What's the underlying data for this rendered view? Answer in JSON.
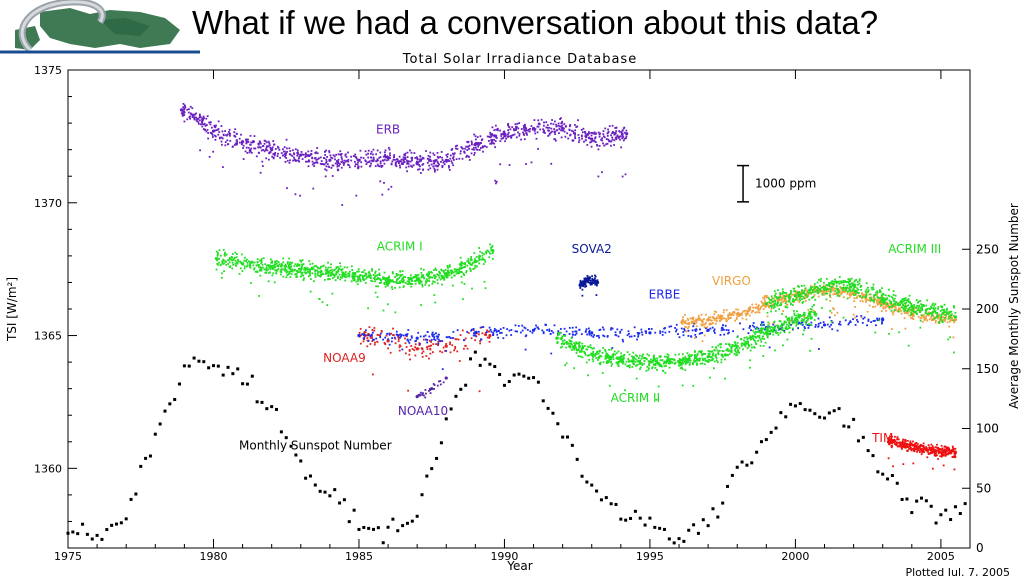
{
  "slide": {
    "title": "What if we had a conversation about this data?"
  },
  "chart_data": {
    "type": "scatter",
    "title": "Total Solar Irradiance Database",
    "xlabel": "Year",
    "ylabel": "TSI [W/m²]",
    "y2label": "Average Monthly Sunspot Number",
    "xlim": [
      1975,
      2006
    ],
    "ylim": [
      1357,
      1375
    ],
    "y2lim": [
      0,
      400
    ],
    "xticks": [
      1975,
      1980,
      1985,
      1990,
      1995,
      2000,
      2005
    ],
    "yticks": [
      1360,
      1365,
      1370,
      1375
    ],
    "y2ticks": [
      0,
      50,
      100,
      150,
      200,
      250
    ],
    "scale_bar_label": "1000 ppm",
    "footer": "Plotted Jul. 7, 2005",
    "colors": {
      "ERB": "#6a1fbf",
      "ACRIM I": "#22dd22",
      "ACRIM II": "#22dd22",
      "ACRIM III": "#22dd22",
      "NOAA9": "#dd2222",
      "NOAA10": "#5522aa",
      "SOVA2": "#0a1a99",
      "ERBE": "#1a2aee",
      "VIRGO": "#f0a040",
      "TIM": "#ee1111",
      "Monthly Sunspot Number": "#000000"
    },
    "series": [
      {
        "name": "ERB",
        "label_pos": [
          1986.0,
          1372.6
        ],
        "x": [
          1978.9,
          1979.3,
          1980,
          1981,
          1982,
          1983,
          1984,
          1985,
          1986,
          1987,
          1988,
          1989,
          1990,
          1991,
          1992,
          1993,
          1994.2
        ],
        "y": [
          1373.5,
          1373.3,
          1372.7,
          1372.3,
          1372.0,
          1371.8,
          1371.6,
          1371.6,
          1371.7,
          1371.5,
          1371.6,
          1372.2,
          1372.6,
          1372.8,
          1372.8,
          1372.4,
          1372.6
        ]
      },
      {
        "name": "ACRIM I",
        "label_pos": [
          1986.4,
          1368.2
        ],
        "x": [
          1980.1,
          1981,
          1982,
          1983,
          1983.9,
          1984.5,
          1985,
          1986,
          1987,
          1988,
          1989,
          1989.6
        ],
        "y": [
          1367.9,
          1367.7,
          1367.6,
          1367.5,
          1367.4,
          1367.3,
          1367.2,
          1367.1,
          1367.1,
          1367.3,
          1367.8,
          1368.2
        ]
      },
      {
        "name": "NOAA9",
        "label_pos": [
          1984.5,
          1364.0
        ],
        "x": [
          1985,
          1986,
          1987,
          1988,
          1989.5
        ],
        "y": [
          1365.0,
          1364.8,
          1364.5,
          1364.6,
          1365.0
        ]
      },
      {
        "name": "NOAA10",
        "label_pos": [
          1987.2,
          1362.0
        ],
        "x": [
          1987.0,
          1987.5,
          1988.0
        ],
        "y": [
          1362.7,
          1363.0,
          1363.4
        ]
      },
      {
        "name": "SOVA2",
        "label_pos": [
          1993.0,
          1368.1
        ],
        "x": [
          1992.6,
          1992.9,
          1993.2
        ],
        "y": [
          1366.9,
          1367.1,
          1367.0
        ]
      },
      {
        "name": "ERBE",
        "label_pos": [
          1995.5,
          1366.4
        ],
        "x": [
          1985,
          1987,
          1989,
          1991,
          1993,
          1995,
          1997,
          1999,
          2001,
          2003
        ],
        "y": [
          1365.0,
          1364.9,
          1365.1,
          1365.2,
          1365.1,
          1365.1,
          1365.2,
          1365.3,
          1365.4,
          1365.6
        ]
      },
      {
        "name": "ACRIM II",
        "label_pos": [
          1994.5,
          1362.5
        ],
        "x": [
          1991.8,
          1993,
          1994,
          1995,
          1996,
          1997,
          1998,
          1999,
          2000,
          2000.7
        ],
        "y": [
          1364.9,
          1364.3,
          1364.1,
          1364.0,
          1364.0,
          1364.2,
          1364.6,
          1365.1,
          1365.6,
          1365.8
        ]
      },
      {
        "name": "VIRGO",
        "label_pos": [
          1997.8,
          1366.9
        ],
        "x": [
          1996.1,
          1997,
          1998,
          1999,
          2000,
          2001,
          2002,
          2003,
          2004,
          2005.5
        ],
        "y": [
          1365.5,
          1365.6,
          1365.8,
          1366.2,
          1366.5,
          1366.7,
          1366.6,
          1366.2,
          1365.8,
          1365.6
        ]
      },
      {
        "name": "ACRIM III",
        "label_pos": [
          2004.1,
          1368.1
        ],
        "x": [
          1999,
          2000,
          2001,
          2002,
          2003,
          2004,
          2005.5
        ],
        "y": [
          1366.2,
          1366.5,
          1366.8,
          1366.9,
          1366.4,
          1366.1,
          1365.7
        ]
      },
      {
        "name": "TIM",
        "label_pos": [
          2003.0,
          1361.0
        ],
        "x": [
          2003.2,
          2003.8,
          2004.5,
          2005.5
        ],
        "y": [
          1361.0,
          1360.9,
          1360.7,
          1360.6
        ]
      }
    ],
    "sunspot": {
      "name": "Monthly Sunspot Number",
      "label_pos": [
        1983.5,
        1360.7
      ],
      "x": [
        1975,
        1976,
        1977,
        1978,
        1979,
        1980,
        1981,
        1982,
        1983,
        1984,
        1985,
        1986,
        1987,
        1988,
        1989,
        1990,
        1991,
        1992,
        1993,
        1994,
        1995,
        1996,
        1997,
        1998,
        1999,
        2000,
        2001,
        2002,
        2003,
        2004,
        2005
      ],
      "y": [
        15,
        12,
        27,
        92,
        155,
        154,
        140,
        115,
        66,
        45,
        18,
        14,
        29,
        100,
        157,
        142,
        145,
        94,
        55,
        30,
        18,
        9,
        21,
        64,
        93,
        120,
        111,
        104,
        64,
        40,
        30
      ]
    }
  }
}
